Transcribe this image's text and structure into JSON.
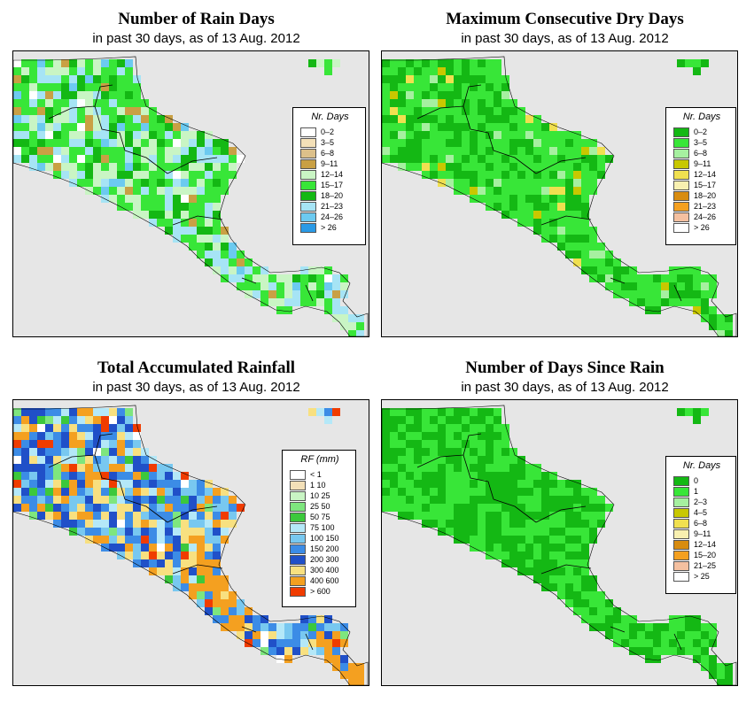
{
  "panels": [
    {
      "id": "rain-days",
      "title": "Number of Rain Days",
      "subtitle": "in past 30 days, as of  13 Aug. 2012",
      "legend": {
        "title": "Nr. Days",
        "items": [
          {
            "label": "0–2",
            "color": "#ffffff"
          },
          {
            "label": "3–5",
            "color": "#f3e0b8"
          },
          {
            "label": "6–8",
            "color": "#dcc08a"
          },
          {
            "label": "9–11",
            "color": "#c9a044"
          },
          {
            "label": "12–14",
            "color": "#c9f5c4"
          },
          {
            "label": "15–17",
            "color": "#38e638"
          },
          {
            "label": "18–20",
            "color": "#14b814"
          },
          {
            "label": "21–23",
            "color": "#a6e4f5"
          },
          {
            "label": "24–26",
            "color": "#6ccaf0"
          },
          {
            "label": "> 26",
            "color": "#2a9ae6"
          }
        ]
      }
    },
    {
      "id": "max-dry-days",
      "title": "Maximum Consecutive Dry Days",
      "subtitle": "in past 30 days, as of  13 Aug. 2012",
      "legend": {
        "title": "Nr. Days",
        "items": [
          {
            "label": "0–2",
            "color": "#14b814"
          },
          {
            "label": "3–5",
            "color": "#38e638"
          },
          {
            "label": "6–8",
            "color": "#a6f0a0"
          },
          {
            "label": "9–11",
            "color": "#c8c800"
          },
          {
            "label": "12–14",
            "color": "#f0e050"
          },
          {
            "label": "15–17",
            "color": "#f8f0b0"
          },
          {
            "label": "18–20",
            "color": "#d88c10"
          },
          {
            "label": "21–23",
            "color": "#f4a020"
          },
          {
            "label": "24–26",
            "color": "#f4c0a0"
          },
          {
            "label": "> 26",
            "color": "#ffffff"
          }
        ]
      }
    },
    {
      "id": "total-rainfall",
      "title": "Total Accumulated Rainfall",
      "subtitle": "in past 30 days, as of  13 Aug. 2012",
      "legend": {
        "title": "RF (mm)",
        "items": [
          {
            "label": "< 1",
            "color": "#ffffff"
          },
          {
            "label": "1  10",
            "color": "#f3e0b8"
          },
          {
            "label": "10  25",
            "color": "#c9f5c4"
          },
          {
            "label": "25  50",
            "color": "#7ee67e"
          },
          {
            "label": "50  75",
            "color": "#3cc83c"
          },
          {
            "label": "75  100",
            "color": "#b4e8f8"
          },
          {
            "label": "100  150",
            "color": "#78c8f0"
          },
          {
            "label": "150  200",
            "color": "#3c8ce6"
          },
          {
            "label": "200  300",
            "color": "#2050c8"
          },
          {
            "label": "300  400",
            "color": "#f8e080"
          },
          {
            "label": "400  600",
            "color": "#f4a020"
          },
          {
            "label": "> 600",
            "color": "#f03c00"
          }
        ]
      }
    },
    {
      "id": "days-since-rain",
      "title": "Number of Days Since Rain",
      "subtitle": "in past 30 days, as of  13 Aug. 2012",
      "legend": {
        "title": "Nr. Days",
        "items": [
          {
            "label": "0",
            "color": "#14b814"
          },
          {
            "label": "1",
            "color": "#38e638"
          },
          {
            "label": "2–3",
            "color": "#a6f0a0"
          },
          {
            "label": "4–5",
            "color": "#c8c800"
          },
          {
            "label": "6–8",
            "color": "#f0e050"
          },
          {
            "label": "9–11",
            "color": "#f8f0b0"
          },
          {
            "label": "12–14",
            "color": "#d88c10"
          },
          {
            "label": "15–20",
            "color": "#f4a020"
          },
          {
            "label": "21–25",
            "color": "#f4c0a0"
          },
          {
            "label": "> 25",
            "color": "#ffffff"
          }
        ]
      }
    }
  ]
}
